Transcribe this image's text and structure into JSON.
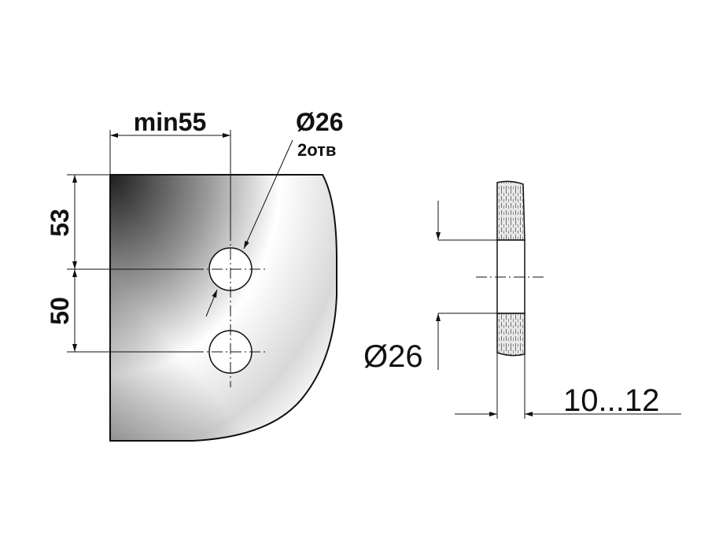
{
  "front_view": {
    "dim_width": "min55",
    "dim_top_offset": "53",
    "dim_hole_spacing": "50",
    "hole_diameter": "Ø26",
    "hole_count": "2отв"
  },
  "side_view": {
    "hole_diameter": "Ø26",
    "glass_thickness": "10...12"
  },
  "colors": {
    "line": "#111111",
    "plate_dark": "#1e1e1e",
    "plate_light": "#ffffff"
  }
}
